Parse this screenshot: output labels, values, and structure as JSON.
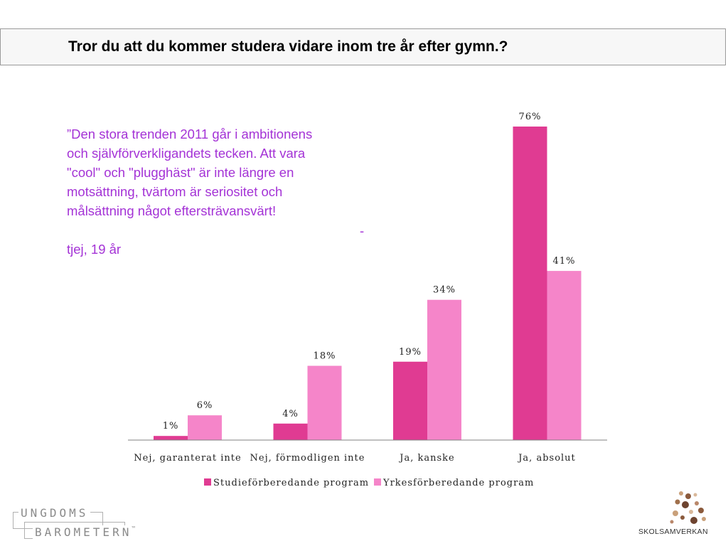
{
  "header": {
    "title": "Tror du att du kommer studera vidare inom tre år efter gymn.?"
  },
  "quote": {
    "lines": [
      "”Den stora trenden 2011 går i ambitionens",
      "och självförverkligandets tecken. Att vara",
      "\"cool\" och \"plugghäst\" är inte längre en",
      "motsättning, tvärtom är seriositet och",
      "målsättning något eftersträvansvärt!"
    ],
    "dash": "-",
    "signature": "tjej, 19 år"
  },
  "chart_data": {
    "type": "bar",
    "categories": [
      "Nej, garanterat inte",
      "Nej, förmodligen inte",
      "Ja, kanske",
      "Ja, absolut"
    ],
    "series": [
      {
        "name": "Studieförberedande program",
        "values": [
          1,
          4,
          19,
          76
        ],
        "labels": [
          "1%",
          "4%",
          "19%",
          "76%"
        ],
        "color": "#e03b92"
      },
      {
        "name": "Yrkesförberedande program",
        "values": [
          6,
          18,
          34,
          41
        ],
        "labels": [
          "6%",
          "18%",
          "34%",
          "41%"
        ],
        "color": "#f585c9"
      }
    ],
    "ylim": [
      0,
      76
    ],
    "legend_position": "bottom",
    "grid": false
  },
  "logos": {
    "ungdoms_line1": "UNGDOMS",
    "ungdoms_line2": "BAROMETERN",
    "trademark": "™",
    "skolsamverkan": "SKOLSAMVERKAN"
  },
  "colors": {
    "quote_text": "#a433d6",
    "accent_dark_pink": "#e03b92",
    "accent_light_pink": "#f585c9"
  }
}
